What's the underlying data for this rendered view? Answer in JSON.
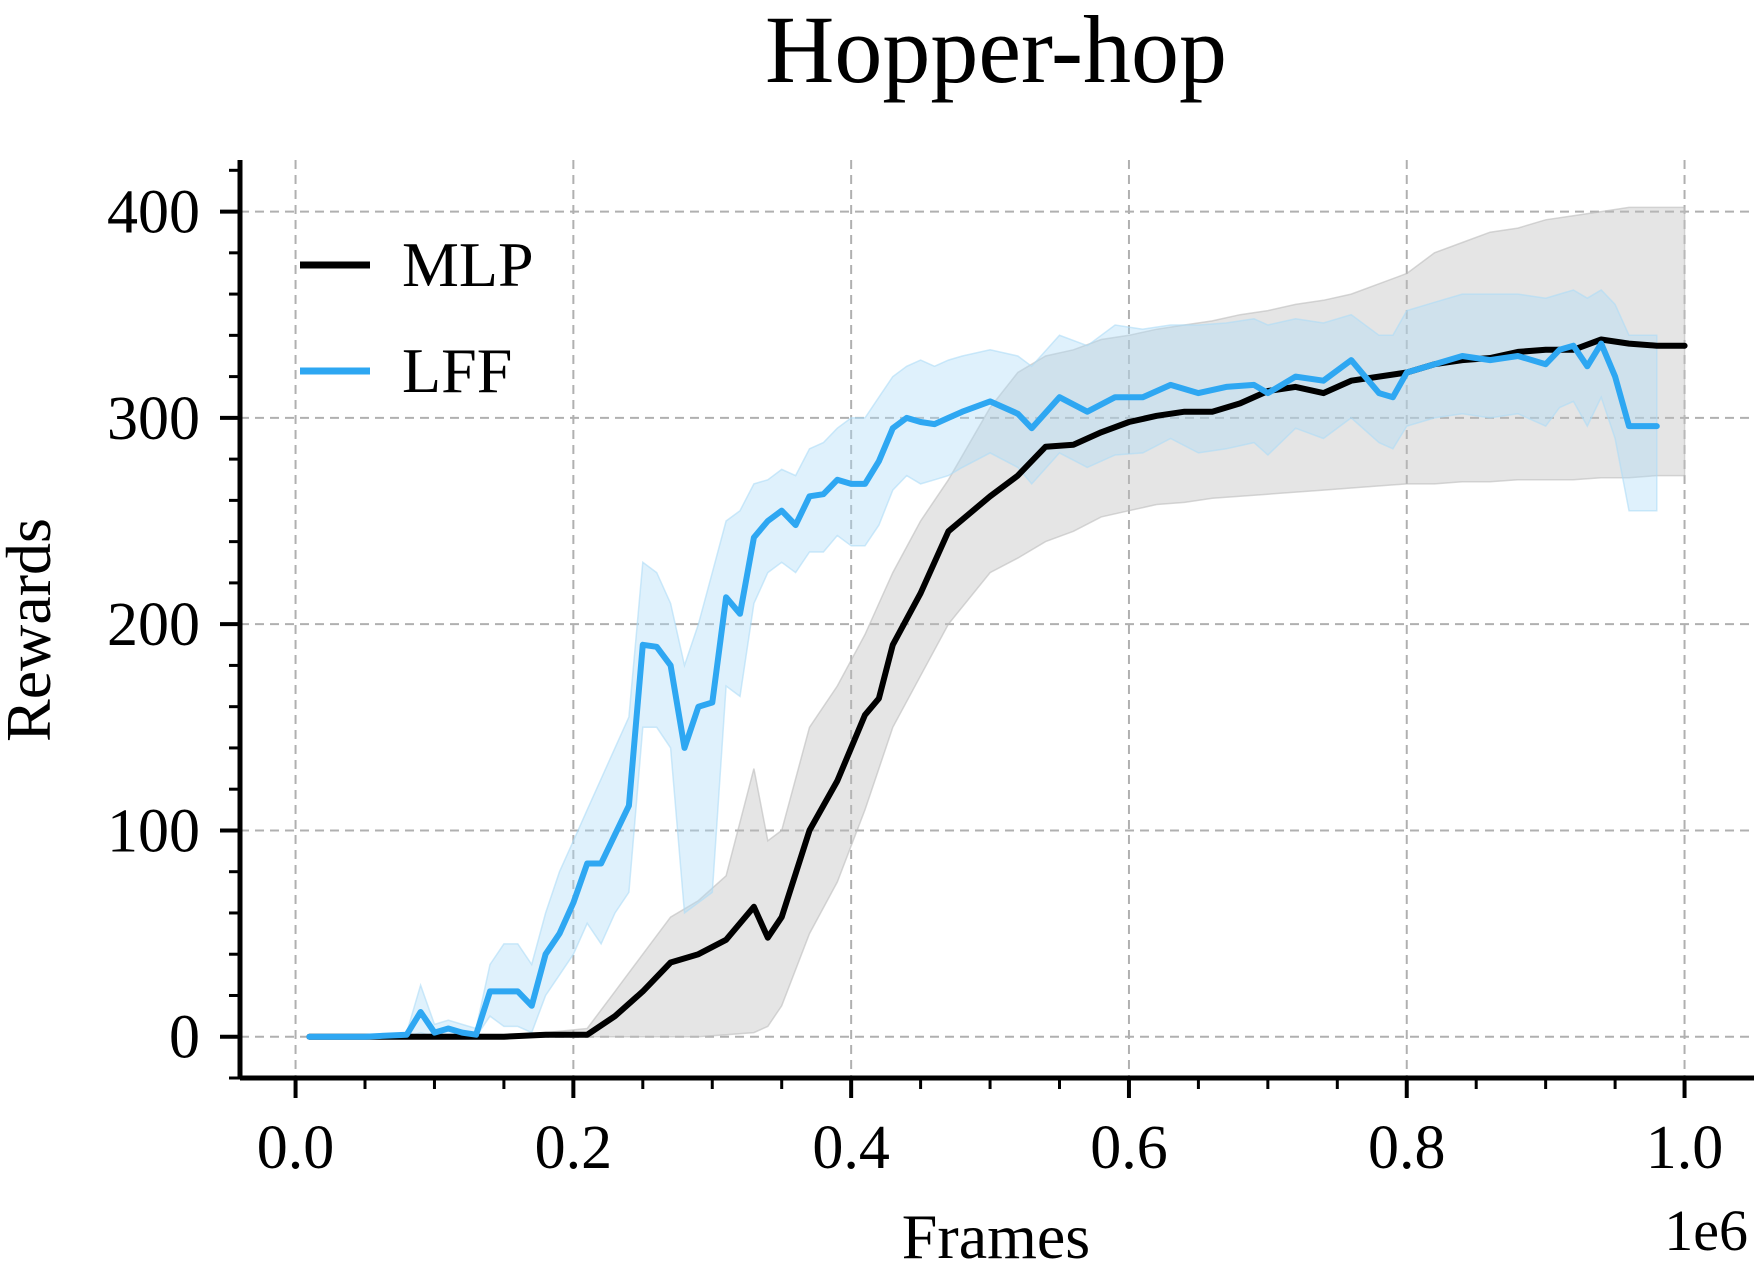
{
  "chart_data": {
    "type": "line",
    "title": "Hopper-hop",
    "xlabel": "Frames",
    "ylabel": "Rewards",
    "x_offset_label": "1e6",
    "xlim": [
      -0.04,
      1.05
    ],
    "ylim": [
      -20,
      425
    ],
    "x_ticks": [
      0.0,
      0.2,
      0.4,
      0.6,
      0.8,
      1.0
    ],
    "x_tick_labels": [
      "0.0",
      "0.2",
      "0.4",
      "0.6",
      "0.8",
      "1.0"
    ],
    "y_ticks": [
      0,
      100,
      200,
      300,
      400
    ],
    "y_tick_labels": [
      "0",
      "100",
      "200",
      "300",
      "400"
    ],
    "grid": true,
    "legend_position": "top-left",
    "series": [
      {
        "name": "MLP",
        "color": "#000000",
        "band_color": "#bdbdbd",
        "x": [
          0.01,
          0.05,
          0.1,
          0.15,
          0.18,
          0.21,
          0.23,
          0.25,
          0.27,
          0.29,
          0.31,
          0.33,
          0.34,
          0.35,
          0.37,
          0.39,
          0.41,
          0.42,
          0.43,
          0.45,
          0.47,
          0.5,
          0.52,
          0.54,
          0.56,
          0.58,
          0.6,
          0.62,
          0.64,
          0.66,
          0.68,
          0.7,
          0.72,
          0.74,
          0.76,
          0.8,
          0.82,
          0.84,
          0.86,
          0.88,
          0.9,
          0.92,
          0.94,
          0.96,
          0.98,
          1.0
        ],
        "y": [
          0,
          0,
          0,
          0,
          1,
          1,
          10,
          22,
          36,
          40,
          47,
          63,
          48,
          58,
          100,
          124,
          156,
          164,
          190,
          215,
          245,
          262,
          272,
          286,
          287,
          293,
          298,
          301,
          303,
          303,
          307,
          313,
          315,
          312,
          318,
          322,
          326,
          328,
          329,
          332,
          333,
          333,
          338,
          336,
          335,
          335
        ],
        "band_upper": [
          0,
          0,
          0,
          1,
          2,
          4,
          22,
          40,
          58,
          66,
          78,
          130,
          95,
          100,
          150,
          170,
          195,
          210,
          225,
          250,
          270,
          305,
          322,
          330,
          333,
          338,
          340,
          343,
          345,
          347,
          350,
          352,
          355,
          357,
          360,
          370,
          380,
          385,
          390,
          392,
          396,
          398,
          400,
          402,
          402,
          402
        ],
        "band_lower": [
          0,
          0,
          0,
          0,
          0,
          0,
          0,
          0,
          0,
          0,
          1,
          2,
          5,
          15,
          50,
          75,
          110,
          130,
          150,
          175,
          200,
          225,
          232,
          240,
          245,
          252,
          255,
          258,
          259,
          261,
          262,
          263,
          264,
          265,
          266,
          268,
          268,
          269,
          269,
          270,
          270,
          270,
          271,
          271,
          272,
          272
        ]
      },
      {
        "name": "LFF",
        "color": "#2ea7f2",
        "band_color": "#aedcf7",
        "x": [
          0.01,
          0.05,
          0.08,
          0.09,
          0.1,
          0.11,
          0.12,
          0.13,
          0.14,
          0.15,
          0.16,
          0.17,
          0.18,
          0.19,
          0.2,
          0.21,
          0.22,
          0.23,
          0.24,
          0.25,
          0.26,
          0.27,
          0.28,
          0.29,
          0.3,
          0.31,
          0.32,
          0.33,
          0.34,
          0.35,
          0.36,
          0.37,
          0.38,
          0.39,
          0.4,
          0.41,
          0.42,
          0.43,
          0.44,
          0.45,
          0.46,
          0.47,
          0.48,
          0.5,
          0.52,
          0.53,
          0.55,
          0.57,
          0.59,
          0.61,
          0.63,
          0.65,
          0.67,
          0.69,
          0.7,
          0.72,
          0.74,
          0.76,
          0.78,
          0.79,
          0.8,
          0.82,
          0.84,
          0.86,
          0.88,
          0.9,
          0.91,
          0.92,
          0.93,
          0.94,
          0.95,
          0.96,
          0.98
        ],
        "y": [
          0,
          0,
          1,
          12,
          2,
          4,
          2,
          1,
          22,
          22,
          22,
          15,
          40,
          50,
          65,
          84,
          84,
          98,
          112,
          190,
          189,
          180,
          140,
          160,
          162,
          213,
          205,
          242,
          250,
          255,
          248,
          262,
          263,
          270,
          268,
          268,
          279,
          295,
          300,
          298,
          297,
          300,
          303,
          308,
          302,
          295,
          310,
          303,
          310,
          310,
          316,
          312,
          315,
          316,
          312,
          320,
          318,
          328,
          312,
          310,
          322,
          326,
          330,
          328,
          330,
          326,
          333,
          335,
          325,
          336,
          320,
          296,
          296
        ],
        "band_upper": [
          0,
          0,
          2,
          25,
          6,
          8,
          6,
          4,
          35,
          45,
          45,
          35,
          60,
          80,
          95,
          110,
          125,
          140,
          155,
          230,
          225,
          210,
          180,
          200,
          225,
          250,
          255,
          268,
          270,
          275,
          272,
          285,
          288,
          295,
          300,
          300,
          310,
          320,
          325,
          328,
          325,
          328,
          330,
          333,
          330,
          325,
          340,
          335,
          345,
          343,
          345,
          345,
          346,
          348,
          345,
          348,
          346,
          350,
          340,
          340,
          352,
          356,
          360,
          360,
          360,
          358,
          360,
          362,
          358,
          362,
          355,
          340,
          340
        ],
        "band_lower": [
          0,
          0,
          0,
          2,
          0,
          0,
          0,
          0,
          10,
          5,
          5,
          2,
          20,
          30,
          40,
          55,
          45,
          60,
          70,
          150,
          150,
          140,
          60,
          65,
          70,
          170,
          165,
          210,
          225,
          230,
          225,
          235,
          235,
          243,
          238,
          238,
          248,
          265,
          272,
          268,
          270,
          272,
          276,
          283,
          276,
          268,
          283,
          276,
          282,
          283,
          290,
          283,
          285,
          288,
          282,
          295,
          290,
          300,
          288,
          285,
          296,
          300,
          302,
          300,
          302,
          296,
          305,
          308,
          296,
          310,
          290,
          255,
          255
        ]
      }
    ]
  }
}
